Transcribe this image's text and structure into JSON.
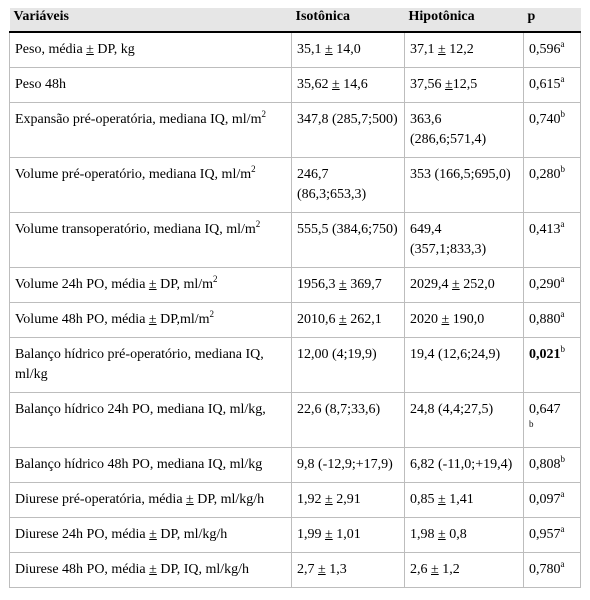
{
  "headers": [
    "Variáveis",
    "Isotônica",
    "Hipotônica",
    "p"
  ],
  "rows": [
    {
      "variable": [
        "Peso, média ",
        "±",
        " DP, kg"
      ],
      "iso": [
        "35,1 ",
        "±",
        " 14,0"
      ],
      "hipo": [
        "37,1 ",
        "±",
        " 12,2"
      ],
      "p": "0,596",
      "p_sup": "a",
      "p_bold": false
    },
    {
      "variable": [
        "Peso 48h"
      ],
      "iso": [
        "35,62 ",
        "±",
        " 14,6"
      ],
      "hipo": [
        "37,56 ",
        "±",
        "12,5"
      ],
      "p": "0,615",
      "p_sup": "a",
      "p_bold": false
    },
    {
      "variable": [
        "Expansão pré-operatória, mediana IQ, ml/m"
      ],
      "variable_sup": "2",
      "iso": [
        "347,8 (285,7;500)"
      ],
      "hipo": [
        "363,6 (286,6;571,4)"
      ],
      "p": "0,740",
      "p_sup": "b",
      "p_bold": false
    },
    {
      "variable": [
        "Volume pré-operatório, mediana IQ, ml/m"
      ],
      "variable_sup": "2",
      "iso": [
        "246,7 (86,3;653,3)"
      ],
      "hipo": [
        "353 (166,5;695,0)"
      ],
      "p": "0,280",
      "p_sup": "b",
      "p_bold": false
    },
    {
      "variable": [
        "Volume transoperatório, mediana IQ, ml/m"
      ],
      "variable_sup": "2",
      "iso": [
        "555,5 (384,6;750)"
      ],
      "hipo": [
        "649,4 (357,1;833,3)"
      ],
      "p": "0,413",
      "p_sup": "a",
      "p_bold": false
    },
    {
      "variable": [
        "Volume 24h PO, média ",
        "±",
        " DP, ml/m"
      ],
      "variable_sup": "2",
      "iso": [
        "1956,3 ",
        "±",
        " 369,7"
      ],
      "hipo": [
        "2029,4 ",
        "±",
        " 252,0"
      ],
      "p": "0,290",
      "p_sup": "a",
      "p_bold": false
    },
    {
      "variable": [
        "Volume 48h PO, média ",
        "±",
        " DP,ml/m"
      ],
      "variable_sup": "2",
      "iso": [
        "2010,6 ",
        "±",
        " 262,1"
      ],
      "hipo": [
        "2020 ",
        "±",
        " 190,0"
      ],
      "p": "0,880",
      "p_sup": "a",
      "p_bold": false
    },
    {
      "variable": [
        "Balanço hídrico pré-operatório, mediana IQ, ml/kg"
      ],
      "iso": [
        "12,00 (4;19,9)"
      ],
      "hipo": [
        "19,4 (12,6;24,9)"
      ],
      "p": "0,021",
      "p_sup": "b",
      "p_bold": true
    },
    {
      "variable": [
        "Balanço hídrico 24h PO, mediana IQ, ml/kg,"
      ],
      "iso": [
        "22,6 (8,7;33,6)"
      ],
      "hipo": [
        "24,8 (4,4;27,5)"
      ],
      "p": "0,647",
      "p_sup": "b",
      "p_bold": false,
      "p_wrap": true
    },
    {
      "variable": [
        "Balanço hídrico 48h PO, mediana IQ, ml/kg"
      ],
      "iso": [
        "9,8 (-12,9;+17,9)"
      ],
      "hipo": [
        "6,82 (-11,0;+19,4)"
      ],
      "p": "0,808",
      "p_sup": "b",
      "p_bold": false
    },
    {
      "variable": [
        "Diurese pré-operatória, média ",
        "±",
        " DP, ml/kg/h"
      ],
      "iso": [
        "1,92 ",
        "±",
        " 2,91"
      ],
      "hipo": [
        "0,85 ",
        "±",
        " 1,41"
      ],
      "p": "0,097",
      "p_sup": "a",
      "p_bold": false
    },
    {
      "variable": [
        "Diurese 24h PO, média ",
        "±",
        " DP, ml/kg/h"
      ],
      "iso": [
        "1,99 ",
        "±",
        " 1,01"
      ],
      "hipo": [
        "1,98 ",
        "±",
        " 0,8"
      ],
      "p": "0,957",
      "p_sup": "a",
      "p_bold": false
    },
    {
      "variable": [
        "Diurese 48h PO, média ",
        "±",
        " DP, IQ, ml/kg/h"
      ],
      "iso": [
        "2,7 ",
        "±",
        " 1,3"
      ],
      "hipo": [
        "2,6 ",
        "±",
        " 1,2"
      ],
      "p": "0,780",
      "p_sup": "a",
      "p_bold": false
    }
  ]
}
